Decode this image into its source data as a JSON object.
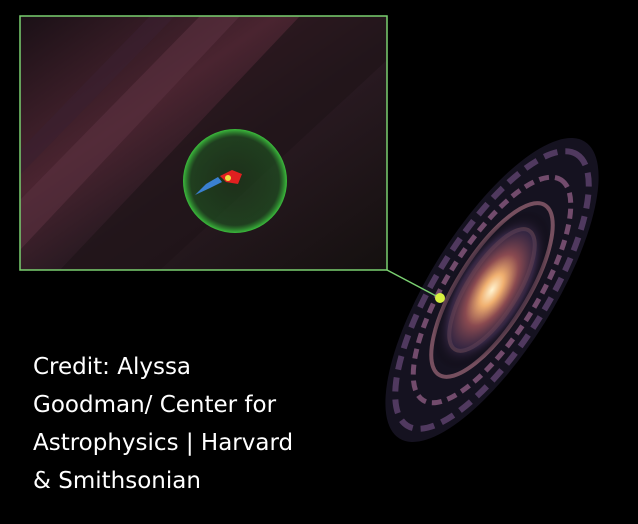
{
  "caption": {
    "lines": [
      "Credit: Alyssa",
      "Goodman/ Center for",
      "Astrophysics | Harvard",
      "& Smithsonian"
    ]
  }
}
